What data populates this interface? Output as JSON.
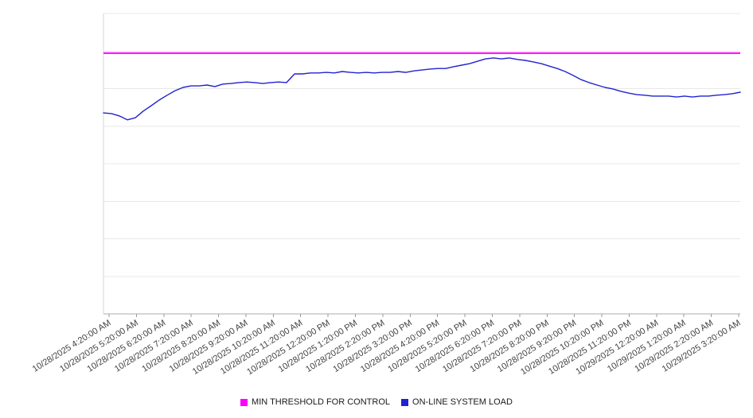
{
  "page": {
    "background": "#ffffff"
  },
  "chart_data": {
    "type": "line",
    "title": "",
    "xlabel": "",
    "ylabel": "",
    "ylim": [
      0,
      100
    ],
    "grid": "horizontal",
    "gridline_step": 12.5,
    "legend_position": "bottom",
    "x_tick_labels": [
      "10/28/2025 4:20:00 AM",
      "10/28/2025 5:20:00 AM",
      "10/28/2025 6:20:00 AM",
      "10/28/2025 7:20:00 AM",
      "10/28/2025 8:20:00 AM",
      "10/28/2025 9:20:00 AM",
      "10/28/2025 10:20:00 AM",
      "10/28/2025 11:20:00 AM",
      "10/28/2025 12:20:00 PM",
      "10/28/2025 1:20:00 PM",
      "10/28/2025 2:20:00 PM",
      "10/28/2025 3:20:00 PM",
      "10/28/2025 4:20:00 PM",
      "10/28/2025 5:20:00 PM",
      "10/28/2025 6:20:00 PM",
      "10/28/2025 7:20:00 PM",
      "10/28/2025 8:20:00 PM",
      "10/28/2025 9:20:00 PM",
      "10/28/2025 10:20:00 PM",
      "10/28/2025 11:20:00 PM",
      "10/29/2025 12:20:00 AM",
      "10/29/2025 1:20:00 AM",
      "10/29/2025 2:20:00 AM",
      "10/29/2025 3:20:00 AM"
    ],
    "series": [
      {
        "name": "MIN THRESHOLD FOR CONTROL",
        "color": "#ff00ff",
        "style": "horizontal-threshold-line",
        "value": 86.8
      },
      {
        "name": "ON-LINE SYSTEM LOAD",
        "color": "#2222d0",
        "style": "line",
        "values": [
          66.9,
          66.7,
          65.9,
          64.6,
          65.3,
          67.5,
          69.3,
          71.2,
          72.8,
          74.3,
          75.4,
          75.9,
          75.9,
          76.2,
          75.7,
          76.5,
          76.7,
          77.0,
          77.2,
          77.0,
          76.7,
          77.0,
          77.2,
          77.0,
          79.9,
          79.9,
          80.2,
          80.2,
          80.4,
          80.2,
          80.7,
          80.4,
          80.2,
          80.4,
          80.2,
          80.4,
          80.4,
          80.7,
          80.4,
          80.9,
          81.2,
          81.5,
          81.7,
          81.7,
          82.3,
          82.8,
          83.3,
          84.1,
          84.9,
          85.2,
          84.9,
          85.2,
          84.7,
          84.4,
          83.9,
          83.3,
          82.5,
          81.7,
          80.7,
          79.4,
          78.0,
          77.0,
          76.2,
          75.4,
          74.9,
          74.1,
          73.5,
          73.0,
          72.8,
          72.5,
          72.5,
          72.5,
          72.2,
          72.5,
          72.2,
          72.5,
          72.5,
          72.8,
          73.0,
          73.3,
          73.8
        ]
      }
    ],
    "colors": {
      "gridline": "#e8e8e8",
      "axis_line": "#adadad",
      "left_axis_line": "#d6d6d6",
      "tick_mark": "#999999",
      "tick_label_text": "#3f3f3f"
    }
  }
}
